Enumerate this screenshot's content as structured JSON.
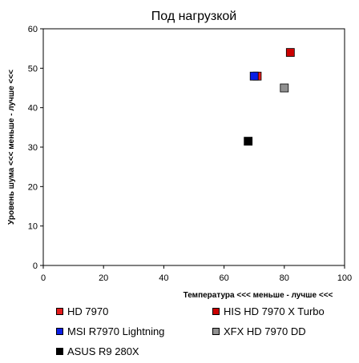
{
  "chart_data": {
    "type": "scatter",
    "title": "Под нагрузкой",
    "xlabel": "Температура  <<<  меньше - лучше <<<",
    "ylabel": "Уровень шума <<< меньше - лучше <<<",
    "xlim": [
      0,
      100
    ],
    "ylim": [
      0,
      60
    ],
    "xticks": [
      0,
      20,
      40,
      60,
      80,
      100
    ],
    "yticks": [
      0,
      10,
      20,
      30,
      40,
      50,
      60
    ],
    "grid": false,
    "legend_position": "bottom",
    "series": [
      {
        "name": "HD 7970",
        "color": "#e41b1b",
        "points": [
          [
            71,
            48
          ]
        ]
      },
      {
        "name": "HIS HD 7970 X Turbo",
        "color": "#cc0000",
        "points": [
          [
            82,
            54
          ]
        ]
      },
      {
        "name": "MSI R7970 Lightning",
        "color": "#0a1ee6",
        "points": [
          [
            70,
            48
          ]
        ]
      },
      {
        "name": "XFX HD 7970 DD",
        "color": "#909090",
        "points": [
          [
            80,
            45
          ]
        ]
      },
      {
        "name": "ASUS R9 280X",
        "color": "#000000",
        "points": [
          [
            68,
            31.5
          ]
        ]
      }
    ]
  }
}
